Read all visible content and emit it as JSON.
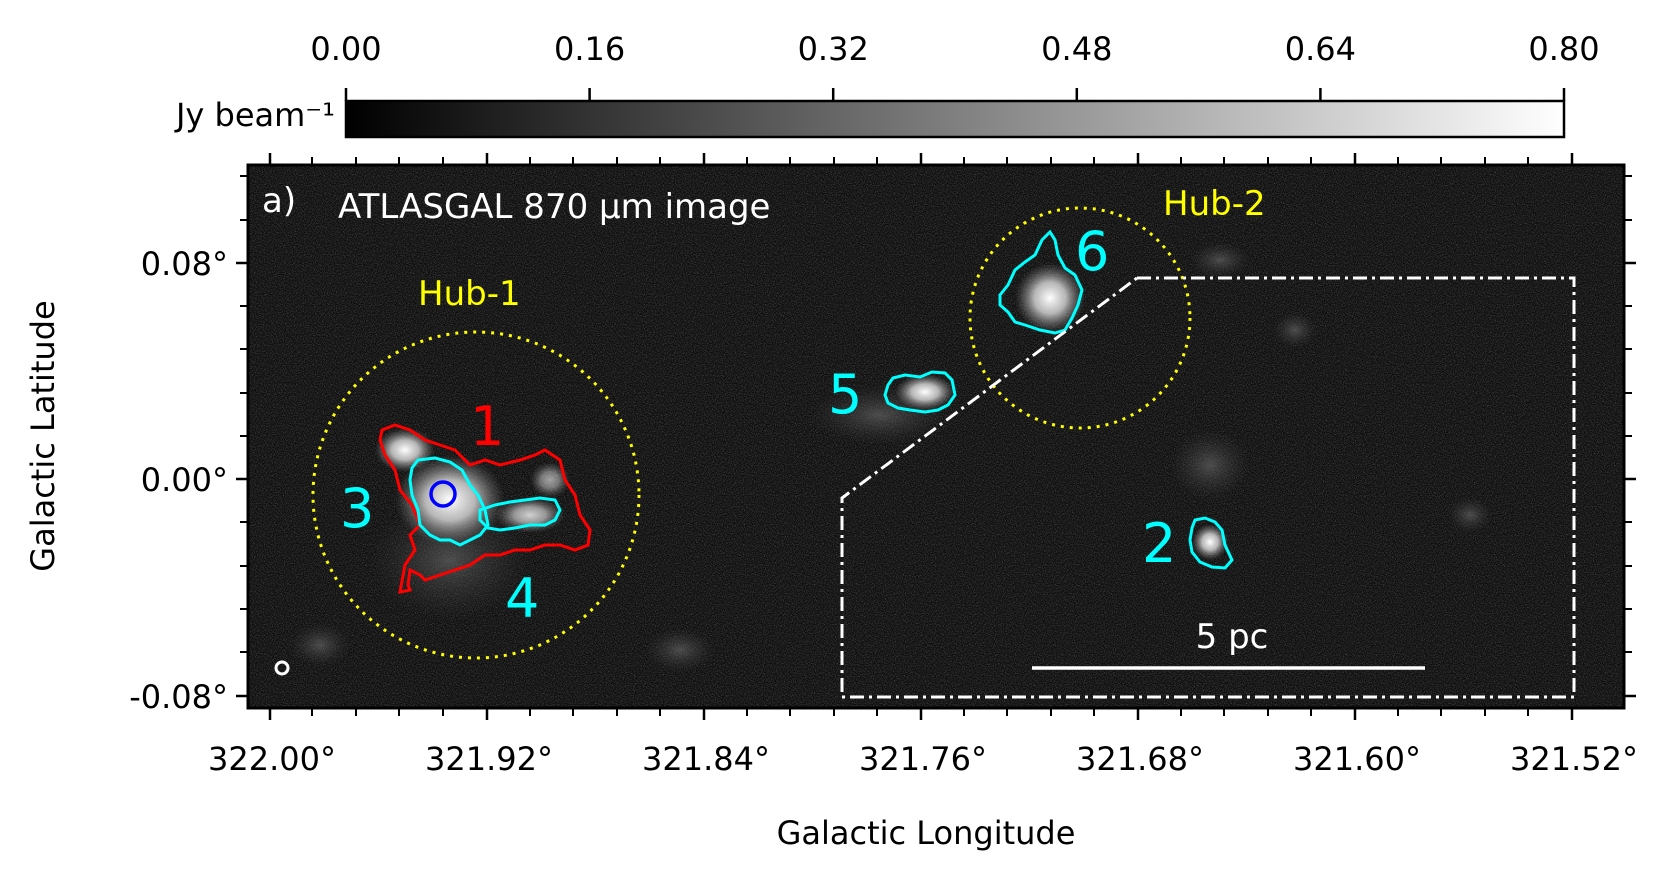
{
  "panel_label": "a)",
  "image_title": "ATLASGAL 870 μm image",
  "colorbar": {
    "unit_label": "Jy beam⁻¹",
    "ticks": [
      "0.00",
      "0.16",
      "0.32",
      "0.48",
      "0.64",
      "0.80"
    ],
    "range": [
      0.0,
      0.8
    ]
  },
  "axes": {
    "xlabel": "Galactic Longitude",
    "ylabel": "Galactic Latitude",
    "x_ticks": [
      "322.00°",
      "321.92°",
      "321.84°",
      "321.76°",
      "321.68°",
      "321.60°",
      "321.52°"
    ],
    "y_ticks": [
      "0.08°",
      "0.00°",
      "-0.08°"
    ]
  },
  "hubs": [
    {
      "label": "Hub-1"
    },
    {
      "label": "Hub-2"
    }
  ],
  "clumps": [
    {
      "label": "1",
      "contour_color": "#ff0000"
    },
    {
      "label": "2",
      "contour_color": "#00ffff"
    },
    {
      "label": "3",
      "contour_color": "#00ffff"
    },
    {
      "label": "4",
      "contour_color": "#00ffff"
    },
    {
      "label": "5",
      "contour_color": "#00ffff"
    },
    {
      "label": "6",
      "contour_color": "#00ffff"
    }
  ],
  "scale_bar": {
    "label": "5 pc"
  },
  "colors": {
    "hub_circle": "#ffff00",
    "marker_circle": "#0000ff",
    "background": "#0d0d0d",
    "annotation": "#ffffff"
  }
}
